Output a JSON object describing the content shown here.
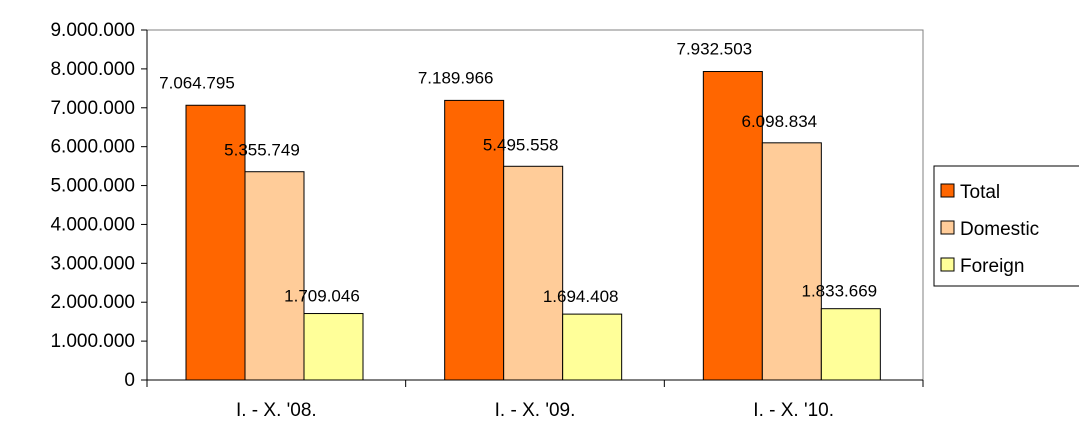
{
  "chart_data": {
    "type": "bar",
    "categories": [
      "I. - X. '08.",
      "I. - X. '09.",
      "I. - X. '10."
    ],
    "series": [
      {
        "name": "Total",
        "color": "#ff6600",
        "values": [
          7064795,
          7189966,
          7932503
        ],
        "labels": [
          "7.064.795",
          "7.189.966",
          "7.932.503"
        ]
      },
      {
        "name": "Domestic",
        "color": "#ffcc99",
        "values": [
          5355749,
          5495558,
          6098834
        ],
        "labels": [
          "5.355.749",
          "5.495.558",
          "6.098.834"
        ]
      },
      {
        "name": "Foreign",
        "color": "#ffff99",
        "values": [
          1709046,
          1694408,
          1833669
        ],
        "labels": [
          "1.709.046",
          "1.694.408",
          "1.833.669"
        ]
      }
    ],
    "ylim": [
      0,
      9000000
    ],
    "yticks": [
      0,
      1000000,
      2000000,
      3000000,
      4000000,
      5000000,
      6000000,
      7000000,
      8000000,
      9000000
    ],
    "ytick_labels": [
      "0",
      "1.000.000",
      "2.000.000",
      "3.000.000",
      "4.000.000",
      "5.000.000",
      "6.000.000",
      "7.000.000",
      "8.000.000",
      "9.000.000"
    ],
    "grid": false,
    "plot_border": true,
    "legend_position": "right"
  }
}
